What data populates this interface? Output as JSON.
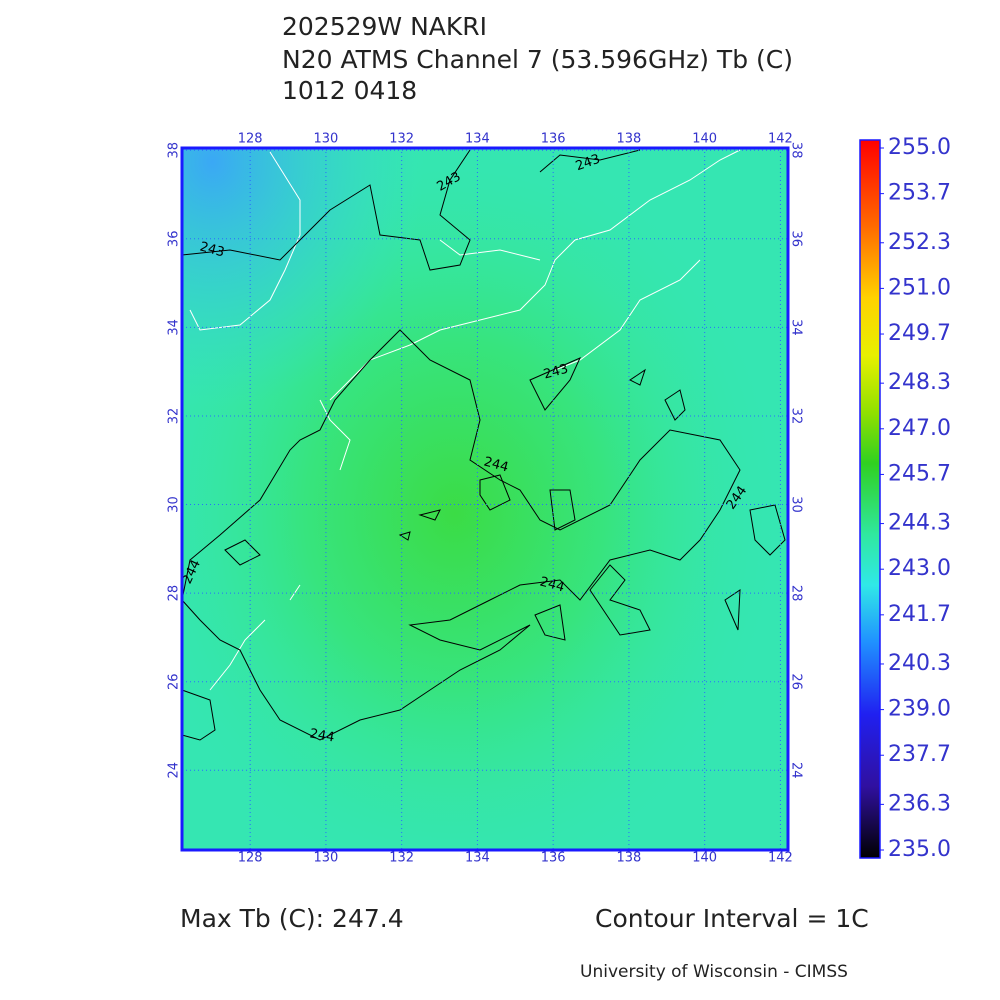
{
  "title": {
    "line1": "202529W NAKRI",
    "line2": "N20 ATMS Channel 7 (53.596GHz) Tb (C)",
    "line3": "1012 0418"
  },
  "map": {
    "lon_ticks": [
      128,
      130,
      132,
      134,
      136,
      138,
      140,
      142
    ],
    "lat_ticks": [
      24,
      26,
      28,
      30,
      32,
      34,
      36,
      38
    ],
    "contour_labels": [
      "243",
      "243",
      "243",
      "243",
      "244",
      "244",
      "244",
      "244",
      "244"
    ]
  },
  "colorbar": {
    "ticks": [
      {
        "value": 255,
        "label": "255.0"
      },
      {
        "value": 253.7,
        "label": "253.7"
      },
      {
        "value": 252.3,
        "label": "252.3"
      },
      {
        "value": 251,
        "label": "251.0"
      },
      {
        "value": 249.7,
        "label": "249.7"
      },
      {
        "value": 248.3,
        "label": "248.3"
      },
      {
        "value": 247,
        "label": "247.0"
      },
      {
        "value": 245.7,
        "label": "245.7"
      },
      {
        "value": 244.3,
        "label": "244.3"
      },
      {
        "value": 243,
        "label": "243.0"
      },
      {
        "value": 241.7,
        "label": "241.7"
      },
      {
        "value": 240.3,
        "label": "240.3"
      },
      {
        "value": 239,
        "label": "239.0"
      },
      {
        "value": 237.7,
        "label": "237.7"
      },
      {
        "value": 236.3,
        "label": "236.3"
      },
      {
        "value": 235,
        "label": "235.0"
      }
    ]
  },
  "footer": {
    "max_tb": "Max Tb (C): 247.4",
    "contour_interval": "Contour Interval = 1C",
    "credit": "University of Wisconsin - CIMSS"
  }
}
